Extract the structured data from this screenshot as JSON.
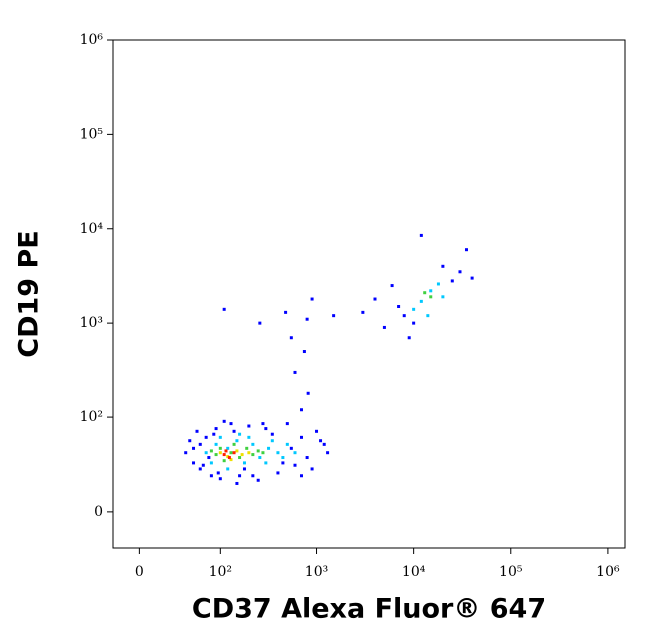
{
  "chart_data": {
    "type": "scatter",
    "scale": "biexponential",
    "x_label": "CD37 Alexa Fluor® 647",
    "y_label": "CD19 PE",
    "xlim": [
      -20,
      1500000
    ],
    "ylim": [
      -20,
      1000000
    ],
    "xticks": [
      0,
      {
        "value": 100,
        "label": "10²"
      },
      {
        "value": 1000,
        "label": "10³"
      },
      {
        "value": 10000,
        "label": "10⁴"
      },
      {
        "value": 100000,
        "label": "10⁵"
      },
      {
        "value": 1000000,
        "label": "10⁶"
      }
    ],
    "yticks": [
      0,
      {
        "value": 100,
        "label": "10²"
      },
      {
        "value": 1000,
        "label": "10³"
      },
      {
        "value": 10000,
        "label": "10⁴"
      },
      {
        "value": 100000,
        "label": "10⁵"
      },
      {
        "value": 1000000,
        "label": "10⁶"
      }
    ],
    "series": [
      {
        "color": "#0000ff",
        "x": [
          40,
          45,
          50,
          55,
          60,
          70,
          80,
          90,
          100,
          130,
          160,
          200,
          250,
          300,
          400,
          500,
          600,
          700,
          800,
          1000,
          1200,
          1300,
          50,
          60,
          75,
          110,
          150,
          220,
          350,
          450,
          550,
          900,
          1100,
          65,
          85,
          95,
          140,
          180,
          280,
          700,
          3000,
          4000,
          5000,
          6000,
          8000,
          9000,
          20000,
          25000,
          30000,
          35000,
          12000,
          7000,
          10000,
          40000,
          110,
          260,
          480,
          550,
          600,
          750,
          800,
          820,
          900,
          700,
          1500
        ],
        "values": [
          40,
          55,
          30,
          70,
          25,
          60,
          20,
          75,
          18,
          85,
          20,
          80,
          17,
          75,
          22,
          85,
          28,
          60,
          35,
          70,
          50,
          40,
          45,
          50,
          35,
          90,
          15,
          20,
          65,
          30,
          45,
          25,
          55,
          28,
          65,
          22,
          70,
          25,
          85,
          20,
          1300,
          1800,
          900,
          2500,
          1200,
          700,
          4000,
          2800,
          3500,
          6000,
          8500,
          1500,
          1000,
          3000,
          1400,
          1000,
          1300,
          700,
          300,
          500,
          1100,
          180,
          1800,
          120,
          1200
        ]
      },
      {
        "color": "#00c8ff",
        "x": [
          70,
          80,
          90,
          120,
          150,
          180,
          220,
          260,
          320,
          400,
          500,
          120,
          200,
          300,
          100,
          15000,
          12000,
          18000,
          10000,
          20000,
          14000,
          350,
          450,
          600,
          160
        ],
        "values": [
          40,
          30,
          50,
          45,
          55,
          30,
          50,
          35,
          45,
          40,
          50,
          25,
          60,
          30,
          60,
          2200,
          1700,
          2600,
          1400,
          1900,
          1200,
          55,
          35,
          40,
          65
        ]
      },
      {
        "color": "#40d040",
        "x": [
          90,
          100,
          130,
          160,
          190,
          220,
          250,
          110,
          140,
          280,
          15000,
          13000,
          80
        ],
        "values": [
          38,
          45,
          40,
          35,
          45,
          38,
          42,
          32,
          50,
          40,
          1900,
          2100,
          42
        ]
      },
      {
        "color": "#f0e000",
        "x": [
          100,
          120,
          150,
          170,
          200,
          130
        ],
        "values": [
          40,
          36,
          42,
          38,
          40,
          33
        ]
      },
      {
        "color": "#ff2000",
        "x": [
          110,
          125,
          140,
          115
        ],
        "values": [
          38,
          35,
          40,
          42
        ]
      }
    ]
  }
}
